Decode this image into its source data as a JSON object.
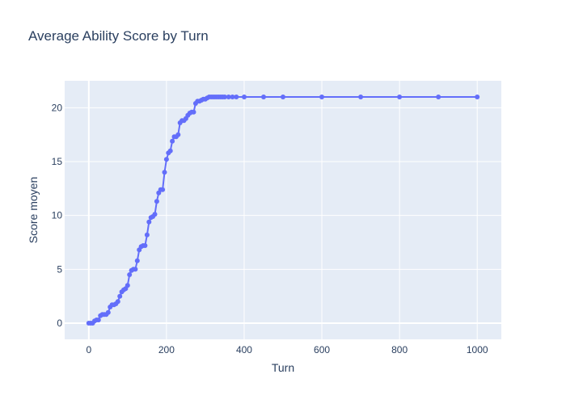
{
  "chart_data": {
    "type": "line",
    "title": "Average Ability Score by Turn",
    "xlabel": "Turn",
    "ylabel": "Score moyen",
    "xlim": [
      -62,
      1062
    ],
    "ylim": [
      -1.5,
      22.5
    ],
    "x_ticks": [
      0,
      200,
      400,
      600,
      800,
      1000
    ],
    "y_ticks": [
      0,
      5,
      10,
      15,
      20
    ],
    "grid": true,
    "mode": "lines+markers",
    "series": [
      {
        "color": "#636efa",
        "x": [
          0,
          5,
          10,
          15,
          20,
          25,
          30,
          35,
          40,
          45,
          50,
          55,
          60,
          65,
          70,
          75,
          80,
          85,
          90,
          95,
          100,
          105,
          110,
          115,
          120,
          125,
          130,
          135,
          140,
          145,
          150,
          155,
          160,
          165,
          170,
          175,
          180,
          185,
          190,
          195,
          200,
          205,
          210,
          215,
          220,
          225,
          230,
          235,
          240,
          245,
          250,
          255,
          260,
          265,
          270,
          275,
          280,
          285,
          290,
          295,
          300,
          305,
          310,
          315,
          320,
          325,
          330,
          335,
          340,
          345,
          350,
          360,
          370,
          380,
          400,
          450,
          500,
          600,
          700,
          800,
          900,
          1000
        ],
        "y": [
          0,
          0,
          0,
          0.2,
          0.3,
          0.3,
          0.7,
          0.8,
          0.8,
          0.8,
          1.0,
          1.5,
          1.7,
          1.7,
          1.8,
          2.0,
          2.5,
          2.9,
          3.1,
          3.2,
          3.5,
          4.5,
          4.9,
          5.0,
          5.0,
          5.8,
          6.8,
          7.1,
          7.2,
          7.2,
          8.2,
          9.4,
          9.8,
          9.9,
          10.1,
          11.3,
          12.1,
          12.4,
          12.4,
          14.0,
          15.2,
          15.8,
          16.0,
          16.9,
          17.3,
          17.3,
          17.5,
          18.6,
          18.8,
          18.8,
          19.0,
          19.3,
          19.5,
          19.6,
          19.6,
          20.4,
          20.6,
          20.6,
          20.7,
          20.8,
          20.8,
          20.9,
          21.0,
          21.0,
          21.0,
          21.0,
          21.0,
          21.0,
          21.0,
          21.0,
          21.0,
          21.0,
          21.0,
          21.0,
          21.0,
          21.0,
          21.0,
          21.0,
          21.0,
          21.0,
          21.0,
          21.0
        ]
      }
    ]
  }
}
